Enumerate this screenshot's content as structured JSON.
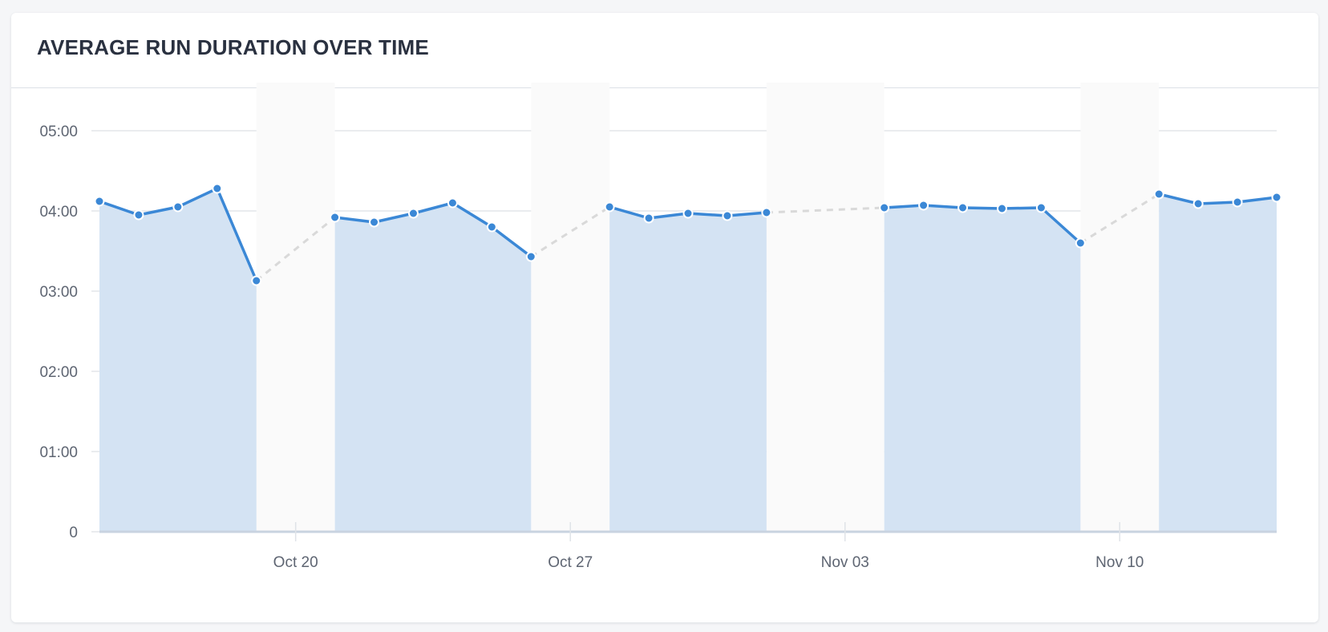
{
  "card": {
    "title": "AVERAGE RUN DURATION OVER TIME"
  },
  "chart_data": {
    "type": "line",
    "title": "AVERAGE RUN DURATION OVER TIME",
    "xlabel": "",
    "ylabel": "",
    "y_unit": "minutes (mm:ss)",
    "ylim": [
      0,
      5
    ],
    "y_ticks": [
      {
        "value": 0,
        "label": "0"
      },
      {
        "value": 1,
        "label": "01:00"
      },
      {
        "value": 2,
        "label": "02:00"
      },
      {
        "value": 3,
        "label": "03:00"
      },
      {
        "value": 4,
        "label": "04:00"
      },
      {
        "value": 5,
        "label": "05:00"
      }
    ],
    "x_range": [
      "2024-10-15",
      "2024-11-14"
    ],
    "x_ticks": [
      {
        "date": "2024-10-20",
        "label": "Oct 20"
      },
      {
        "date": "2024-10-27",
        "label": "Oct 27"
      },
      {
        "date": "2024-11-03",
        "label": "Nov 03"
      },
      {
        "date": "2024-11-10",
        "label": "Nov 10"
      }
    ],
    "grid": true,
    "legend": "none",
    "series": [
      {
        "color": "#3b88d6",
        "fill": "#d4e3f3",
        "gap_line_color": "#d9d9d9",
        "gap_fill": "#fafafa",
        "segments": [
          [
            {
              "x": "2024-10-15",
              "y": 4.12
            },
            {
              "x": "2024-10-16",
              "y": 3.95
            },
            {
              "x": "2024-10-17",
              "y": 4.05
            },
            {
              "x": "2024-10-18",
              "y": 4.28
            },
            {
              "x": "2024-10-19",
              "y": 3.13
            }
          ],
          [
            {
              "x": "2024-10-21",
              "y": 3.92
            },
            {
              "x": "2024-10-22",
              "y": 3.86
            },
            {
              "x": "2024-10-23",
              "y": 3.97
            },
            {
              "x": "2024-10-24",
              "y": 4.1
            },
            {
              "x": "2024-10-25",
              "y": 3.8
            },
            {
              "x": "2024-10-26",
              "y": 3.43
            }
          ],
          [
            {
              "x": "2024-10-28",
              "y": 4.05
            },
            {
              "x": "2024-10-29",
              "y": 3.91
            },
            {
              "x": "2024-10-30",
              "y": 3.97
            },
            {
              "x": "2024-10-31",
              "y": 3.94
            },
            {
              "x": "2024-11-01",
              "y": 3.98
            }
          ],
          [
            {
              "x": "2024-11-04",
              "y": 4.04
            },
            {
              "x": "2024-11-05",
              "y": 4.07
            },
            {
              "x": "2024-11-06",
              "y": 4.04
            },
            {
              "x": "2024-11-07",
              "y": 4.03
            },
            {
              "x": "2024-11-08",
              "y": 4.04
            },
            {
              "x": "2024-11-09",
              "y": 3.6
            }
          ],
          [
            {
              "x": "2024-11-11",
              "y": 4.21
            },
            {
              "x": "2024-11-12",
              "y": 4.09
            },
            {
              "x": "2024-11-13",
              "y": 4.11
            },
            {
              "x": "2024-11-14",
              "y": 4.17
            }
          ]
        ]
      }
    ]
  }
}
